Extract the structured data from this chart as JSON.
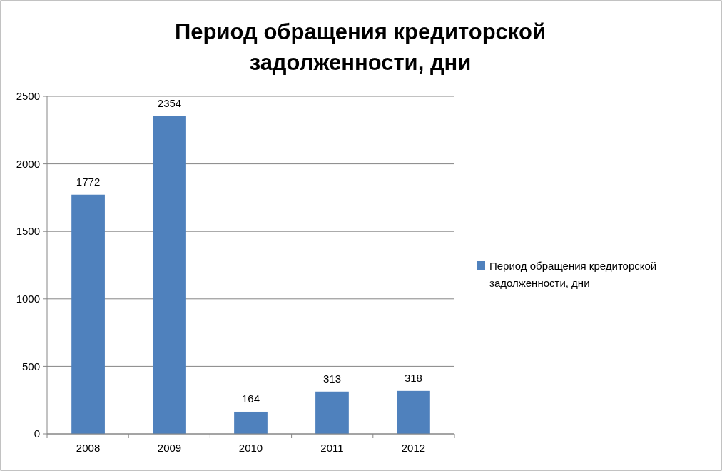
{
  "chart_data": {
    "type": "bar",
    "title": "Период обращения кредиторской задолженности, дни",
    "categories": [
      "2008",
      "2009",
      "2010",
      "2011",
      "2012"
    ],
    "series": [
      {
        "name": "Период обращения кредиторской задолженности, дни",
        "color": "#4f81bd",
        "values": [
          1772,
          2354,
          164,
          313,
          318
        ]
      }
    ],
    "ylim": [
      0,
      2500
    ],
    "yticks": [
      0,
      500,
      1000,
      1500,
      2000,
      2500
    ],
    "grid": "y",
    "legend": "right",
    "data_labels": true
  }
}
